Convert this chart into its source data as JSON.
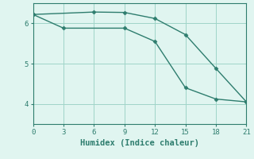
{
  "line1_x": [
    0,
    6,
    9,
    12,
    15,
    18,
    21
  ],
  "line1_y": [
    6.22,
    6.28,
    6.27,
    6.12,
    5.72,
    4.88,
    4.05
  ],
  "line2_x": [
    0,
    3,
    9,
    12,
    15,
    18,
    21
  ],
  "line2_y": [
    6.22,
    5.88,
    5.88,
    5.55,
    4.4,
    4.12,
    4.05
  ],
  "line_color": "#2e7d6e",
  "bg_color": "#e0f5f0",
  "grid_color": "#a0d5c8",
  "xlabel": "Humidex (Indice chaleur)",
  "xlim": [
    0,
    21
  ],
  "ylim": [
    3.5,
    6.5
  ],
  "xticks": [
    0,
    3,
    6,
    9,
    12,
    15,
    18,
    21
  ],
  "yticks": [
    4,
    5,
    6
  ],
  "marker": "D",
  "markersize": 2.5,
  "linewidth": 1.0,
  "xlabel_fontsize": 7.5,
  "tick_fontsize": 6.5
}
